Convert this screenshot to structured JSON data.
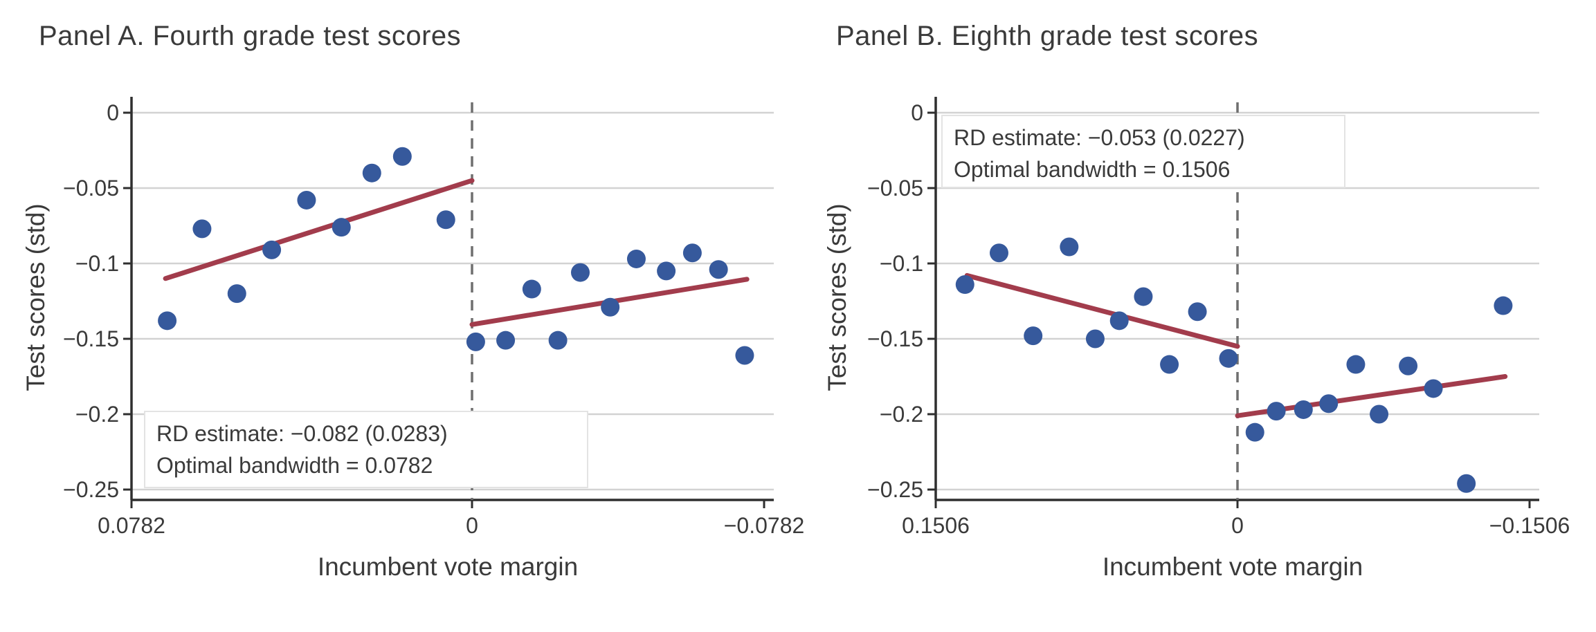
{
  "figure": {
    "background": "#ffffff",
    "colors": {
      "dot": "#36599c",
      "fit_line": "#a23c4c",
      "dashed_cutoff": "#6f6f6f",
      "gridline": "#d2d2d2",
      "axis": "#2f2f2f",
      "text": "#3a3a3a",
      "annotation_bg": "#ffffff",
      "annotation_border": "#e3e3e3"
    }
  },
  "chart_data": [
    {
      "type": "scatter",
      "panel_label": "A",
      "title": "Panel A. Fourth grade test scores",
      "xlabel": "Incumbent vote margin",
      "ylabel": "Test scores (std)",
      "bandwidth": 0.0782,
      "cutoff": 0,
      "x_reversed": true,
      "xlim": [
        0.0782,
        -0.0782
      ],
      "ylim": [
        -0.25,
        0
      ],
      "grid": true,
      "legend": "none",
      "x_tick_labels": [
        "0.0782",
        "0",
        "−0.0782"
      ],
      "y_ticks": [
        0,
        -0.05,
        -0.1,
        -0.15,
        -0.2,
        -0.25
      ],
      "y_tick_labels": [
        "0",
        "−0.05",
        "−0.1",
        "−0.15",
        "−0.2",
        "−0.25"
      ],
      "annotation": {
        "line1": "RD estimate: −0.082 (0.0283)",
        "line2": "Optimal bandwidth = 0.0782"
      },
      "points": [
        [
          0.07,
          -0.138
        ],
        [
          0.062,
          -0.077
        ],
        [
          0.054,
          -0.12
        ],
        [
          0.046,
          -0.091
        ],
        [
          0.038,
          -0.058
        ],
        [
          0.03,
          -0.076
        ],
        [
          0.023,
          -0.04
        ],
        [
          0.016,
          -0.029
        ],
        [
          0.006,
          -0.071
        ],
        [
          -0.001,
          -0.152
        ],
        [
          -0.009,
          -0.151
        ],
        [
          -0.016,
          -0.117
        ],
        [
          -0.023,
          -0.151
        ],
        [
          -0.029,
          -0.106
        ],
        [
          -0.037,
          -0.129
        ],
        [
          -0.044,
          -0.097
        ],
        [
          -0.052,
          -0.105
        ],
        [
          -0.059,
          -0.093
        ],
        [
          -0.066,
          -0.104
        ],
        [
          -0.073,
          -0.161
        ]
      ],
      "fit_lines": [
        {
          "from": [
            0.0704,
            -0.11
          ],
          "to": [
            0.0,
            -0.045
          ]
        },
        {
          "from": [
            0.0,
            -0.1405
          ],
          "to": [
            -0.0736,
            -0.1105
          ]
        }
      ]
    },
    {
      "type": "scatter",
      "panel_label": "B",
      "title": "Panel B. Eighth grade test scores",
      "xlabel": "Incumbent vote margin",
      "ylabel": "Test scores (std)",
      "bandwidth": 0.1506,
      "cutoff": 0,
      "x_reversed": true,
      "xlim": [
        0.1506,
        -0.1506
      ],
      "ylim": [
        -0.25,
        0
      ],
      "grid": true,
      "legend": "none",
      "x_tick_labels": [
        "0.1506",
        "0",
        "−0.1506"
      ],
      "y_ticks": [
        0,
        -0.05,
        -0.1,
        -0.15,
        -0.2,
        -0.25
      ],
      "y_tick_labels": [
        "0",
        "−0.05",
        "−0.1",
        "−0.15",
        "−0.2",
        "−0.25"
      ],
      "annotation": {
        "line1": "RD estimate: −0.053 (0.0227)",
        "line2": "Optimal bandwidth = 0.1506"
      },
      "points": [
        [
          0.136,
          -0.114
        ],
        [
          0.119,
          -0.093
        ],
        [
          0.102,
          -0.148
        ],
        [
          0.084,
          -0.089
        ],
        [
          0.071,
          -0.15
        ],
        [
          0.059,
          -0.138
        ],
        [
          0.047,
          -0.122
        ],
        [
          0.034,
          -0.167
        ],
        [
          0.02,
          -0.132
        ],
        [
          0.0045,
          -0.163
        ],
        [
          -0.009,
          -0.212
        ],
        [
          -0.02,
          -0.198
        ],
        [
          -0.034,
          -0.197
        ],
        [
          -0.047,
          -0.193
        ],
        [
          -0.061,
          -0.167
        ],
        [
          -0.073,
          -0.2
        ],
        [
          -0.088,
          -0.168
        ],
        [
          -0.101,
          -0.183
        ],
        [
          -0.118,
          -0.246
        ],
        [
          -0.137,
          -0.128
        ]
      ],
      "fit_lines": [
        {
          "from": [
            0.135,
            -0.108
          ],
          "to": [
            0.0,
            -0.155
          ]
        },
        {
          "from": [
            0.0,
            -0.201
          ],
          "to": [
            -0.138,
            -0.175
          ]
        }
      ]
    }
  ]
}
